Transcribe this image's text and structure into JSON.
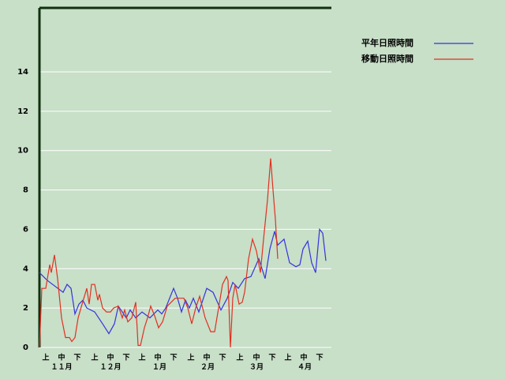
{
  "chart_data": {
    "type": "line",
    "xlim": [
      0,
      185
    ],
    "ylim": [
      0,
      17.25
    ],
    "yticks": [
      0,
      2,
      4,
      6,
      8,
      10,
      12,
      14
    ],
    "grid": true,
    "legend": "top-right",
    "xticks": [
      {
        "value": 4,
        "label": "上"
      },
      {
        "value": 14,
        "label": "中"
      },
      {
        "value": 24,
        "label": "下"
      },
      {
        "value": 35,
        "label": "上"
      },
      {
        "value": 45,
        "label": "中"
      },
      {
        "value": 55,
        "label": "下"
      },
      {
        "value": 65,
        "label": "上"
      },
      {
        "value": 75,
        "label": "中"
      },
      {
        "value": 85,
        "label": "下"
      },
      {
        "value": 96,
        "label": "上"
      },
      {
        "value": 106,
        "label": "中"
      },
      {
        "value": 116,
        "label": "下"
      },
      {
        "value": 127,
        "label": "上"
      },
      {
        "value": 137.5,
        "label": "中"
      },
      {
        "value": 147.5,
        "label": "下"
      },
      {
        "value": 157.5,
        "label": "上"
      },
      {
        "value": 167.5,
        "label": "中"
      },
      {
        "value": 177.5,
        "label": "下"
      }
    ],
    "month_labels": [
      {
        "value": 14,
        "label": "１１月"
      },
      {
        "value": 45,
        "label": "１２月"
      },
      {
        "value": 76,
        "label": "１月"
      },
      {
        "value": 106.5,
        "label": "２月"
      },
      {
        "value": 137.5,
        "label": "３月"
      },
      {
        "value": 168,
        "label": "４月"
      }
    ],
    "series": [
      {
        "name": "平年日照時間",
        "color": "#3333dd",
        "x": [
          0,
          5,
          10,
          15,
          17.5,
          20,
          22.5,
          25,
          27.5,
          30,
          35,
          40,
          44,
          47.5,
          50,
          55,
          57.5,
          61,
          65,
          70,
          75,
          77.5,
          80,
          85,
          87.5,
          90,
          92.5,
          95,
          97.5,
          101,
          106,
          110,
          115,
          119,
          122.5,
          126,
          130,
          134,
          139,
          143,
          146,
          149,
          151,
          155,
          158.5,
          162.5,
          165,
          167,
          170,
          172.5,
          175,
          177.5,
          179.5,
          181.5
        ],
        "values": [
          3.8,
          3.4,
          3.1,
          2.8,
          3.2,
          3.0,
          1.7,
          2.2,
          2.4,
          2.0,
          1.8,
          1.2,
          0.7,
          1.2,
          2.1,
          1.5,
          1.9,
          1.5,
          1.8,
          1.5,
          1.9,
          1.7,
          2.0,
          3.0,
          2.5,
          1.8,
          2.4,
          2.0,
          2.5,
          1.8,
          3.0,
          2.8,
          1.9,
          2.5,
          3.3,
          3.0,
          3.5,
          3.6,
          4.5,
          3.5,
          5.0,
          5.9,
          5.2,
          5.5,
          4.3,
          4.1,
          4.2,
          5.0,
          5.4,
          4.3,
          3.8,
          6.0,
          5.8,
          4.4
        ]
      },
      {
        "name": "移動日照時間",
        "color": "#e03020",
        "x": [
          0,
          1.5,
          4,
          6.5,
          7.5,
          9.5,
          11.5,
          14,
          16.5,
          19,
          20.5,
          22.5,
          24.5,
          27,
          30,
          31.5,
          33,
          35,
          37,
          38,
          40,
          42.5,
          45,
          47,
          50,
          52.5,
          54,
          56,
          58.5,
          61,
          62.5,
          64,
          66.5,
          68.5,
          70.5,
          73,
          75.5,
          78,
          81,
          83.5,
          86,
          89,
          91.5,
          94,
          96.5,
          99,
          101.5,
          105,
          108.5,
          111,
          113.5,
          116,
          118.5,
          119.5,
          121,
          122.5,
          124,
          126.5,
          128.5,
          130,
          132.5,
          135,
          137.5,
          140,
          142,
          144.5,
          146.5,
          148,
          149.5,
          151
        ],
        "values": [
          0,
          3.0,
          3.0,
          4.2,
          3.8,
          4.7,
          3.5,
          1.5,
          0.5,
          0.5,
          0.3,
          0.5,
          1.5,
          2.2,
          3.0,
          2.2,
          3.2,
          3.2,
          2.4,
          2.7,
          2.0,
          1.8,
          1.8,
          2.0,
          2.1,
          1.5,
          1.9,
          1.3,
          1.5,
          2.3,
          0.1,
          0.1,
          1.0,
          1.5,
          2.1,
          1.6,
          1.0,
          1.3,
          2.1,
          2.3,
          2.5,
          2.5,
          2.5,
          2.0,
          1.2,
          2.0,
          2.6,
          1.5,
          0.8,
          0.8,
          2.0,
          3.2,
          3.6,
          3.4,
          0,
          2.5,
          3.2,
          2.2,
          2.3,
          2.8,
          4.5,
          5.5,
          4.9,
          3.8,
          5.5,
          7.5,
          9.6,
          8.0,
          6.5,
          4.5
        ]
      }
    ]
  }
}
